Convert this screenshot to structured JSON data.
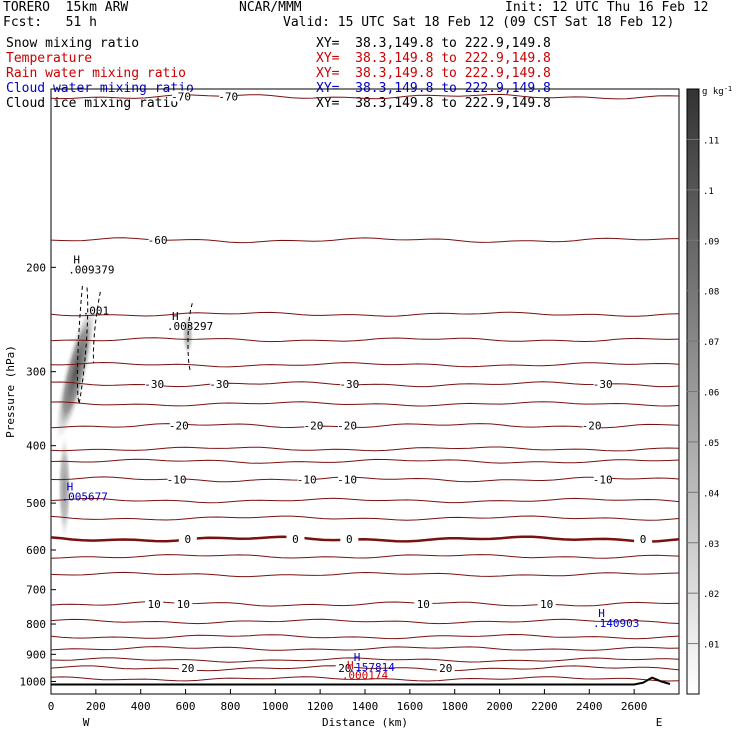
{
  "header": {
    "model": "TORERO  15km ARW",
    "org": "NCAR/MMM",
    "init": "Init: 12 UTC Thu 16 Feb 12",
    "fcst": "Fcst:   51 h",
    "valid": "Valid: 15 UTC Sat 18 Feb 12 (09 CST Sat 18 Feb 12)"
  },
  "fields": [
    {
      "label": "Snow mixing ratio",
      "xy": "XY=  38.3,149.8 to 222.9,149.8",
      "color": "#000000"
    },
    {
      "label": "Temperature",
      "xy": "XY=  38.3,149.8 to 222.9,149.8",
      "color": "#cc0000"
    },
    {
      "label": "Rain water mixing ratio",
      "xy": "XY=  38.3,149.8 to 222.9,149.8",
      "color": "#cc0000"
    },
    {
      "label": "Cloud water mixing ratio",
      "xy": "XY=  38.3,149.8 to 222.9,149.8",
      "color": "#0000cc"
    },
    {
      "label": "Cloud ice mixing ratio",
      "xy": "XY=  38.3,149.8 to 222.9,149.8",
      "color": "#000000"
    }
  ],
  "chart_data": {
    "type": "cross-section",
    "xlabel": "Distance (km)",
    "ylabel": "Pressure (hPa)",
    "xlim": [
      0,
      2800
    ],
    "ylim": [
      100,
      1050
    ],
    "y_scale": "log",
    "x_ticks": [
      0,
      200,
      400,
      600,
      800,
      1000,
      1200,
      1400,
      1600,
      1800,
      2000,
      2200,
      2400,
      2600
    ],
    "y_ticks": [
      200,
      300,
      400,
      500,
      600,
      700,
      800,
      900,
      1000
    ],
    "x_end_labels": {
      "left": "W",
      "right": "E"
    },
    "colorbar": {
      "unit": "g kg",
      "unit_exponent": "-1",
      "ticks": [
        ".01",
        ".02",
        ".03",
        ".04",
        ".05",
        ".06",
        ".07",
        ".08",
        ".09",
        ".1",
        ".11"
      ]
    },
    "isotherms": [
      {
        "value": -70,
        "p": 103,
        "labels": [
          {
            "x": 580,
            "text": "-70"
          },
          {
            "x": 790,
            "text": "-70"
          }
        ]
      },
      {
        "value": -60,
        "p": 180,
        "labels": [
          {
            "x": 475,
            "text": "-60"
          }
        ]
      },
      {
        "value": -30,
        "p": 315,
        "labels": [
          {
            "x": 460,
            "text": "-30"
          },
          {
            "x": 750,
            "text": "-30"
          },
          {
            "x": 1330,
            "text": "-30"
          },
          {
            "x": 2460,
            "text": "-30"
          }
        ]
      },
      {
        "value": -20,
        "p": 370,
        "labels": [
          {
            "x": 570,
            "text": "-20"
          },
          {
            "x": 1170,
            "text": "-20"
          },
          {
            "x": 1320,
            "text": "-20"
          },
          {
            "x": 2410,
            "text": "-20"
          }
        ]
      },
      {
        "value": -10,
        "p": 456,
        "labels": [
          {
            "x": 560,
            "text": "-10"
          },
          {
            "x": 1140,
            "text": "-10"
          },
          {
            "x": 1320,
            "text": "-10"
          },
          {
            "x": 2460,
            "text": "-10"
          }
        ]
      },
      {
        "value": 0,
        "p": 575,
        "labels": [
          {
            "x": 610,
            "text": "0"
          },
          {
            "x": 1090,
            "text": "0"
          },
          {
            "x": 1330,
            "text": "0"
          },
          {
            "x": 2640,
            "text": "0"
          }
        ]
      },
      {
        "value": 10,
        "p": 740,
        "labels": [
          {
            "x": 460,
            "text": "10"
          },
          {
            "x": 590,
            "text": "10"
          },
          {
            "x": 1660,
            "text": "10"
          },
          {
            "x": 2210,
            "text": "10"
          }
        ]
      },
      {
        "value": 20,
        "p": 950,
        "labels": [
          {
            "x": 610,
            "text": "20"
          },
          {
            "x": 1310,
            "text": "20"
          },
          {
            "x": 1760,
            "text": "20"
          }
        ]
      }
    ],
    "extra_isotherm_levels": [
      240,
      265,
      292,
      340,
      405,
      425,
      495,
      530,
      615,
      660,
      792,
      840,
      880,
      920,
      990
    ],
    "maxima": [
      {
        "field": "snow",
        "x": 180,
        "p": 205,
        "text": ".009379",
        "color": "#000000"
      },
      {
        "field": "cloud_ice",
        "x": 620,
        "p": 255,
        "text": ".003297",
        "color": "#000000"
      },
      {
        "field": "cloud_water",
        "x": 150,
        "p": 495,
        "text": ".005677",
        "color": "#0000cc"
      },
      {
        "field": "cloud_water",
        "x": 2520,
        "p": 810,
        "text": ".140903",
        "color": "#0000cc"
      },
      {
        "field": "cloud_water",
        "x": 1430,
        "p": 960,
        "text": ".157814",
        "color": "#0000cc"
      },
      {
        "field": "rain",
        "x": 1400,
        "p": 990,
        "text": ".000174",
        "color": "#cc0000"
      }
    ],
    "snow_contour_label": {
      "x": 200,
      "p": 240,
      "text": ".001"
    },
    "maxima_marker": "H",
    "terrain_x": [
      0,
      2600,
      2640,
      2680,
      2720,
      2760
    ],
    "terrain_p": [
      1012,
      1012,
      1005,
      985,
      1000,
      1010
    ]
  }
}
